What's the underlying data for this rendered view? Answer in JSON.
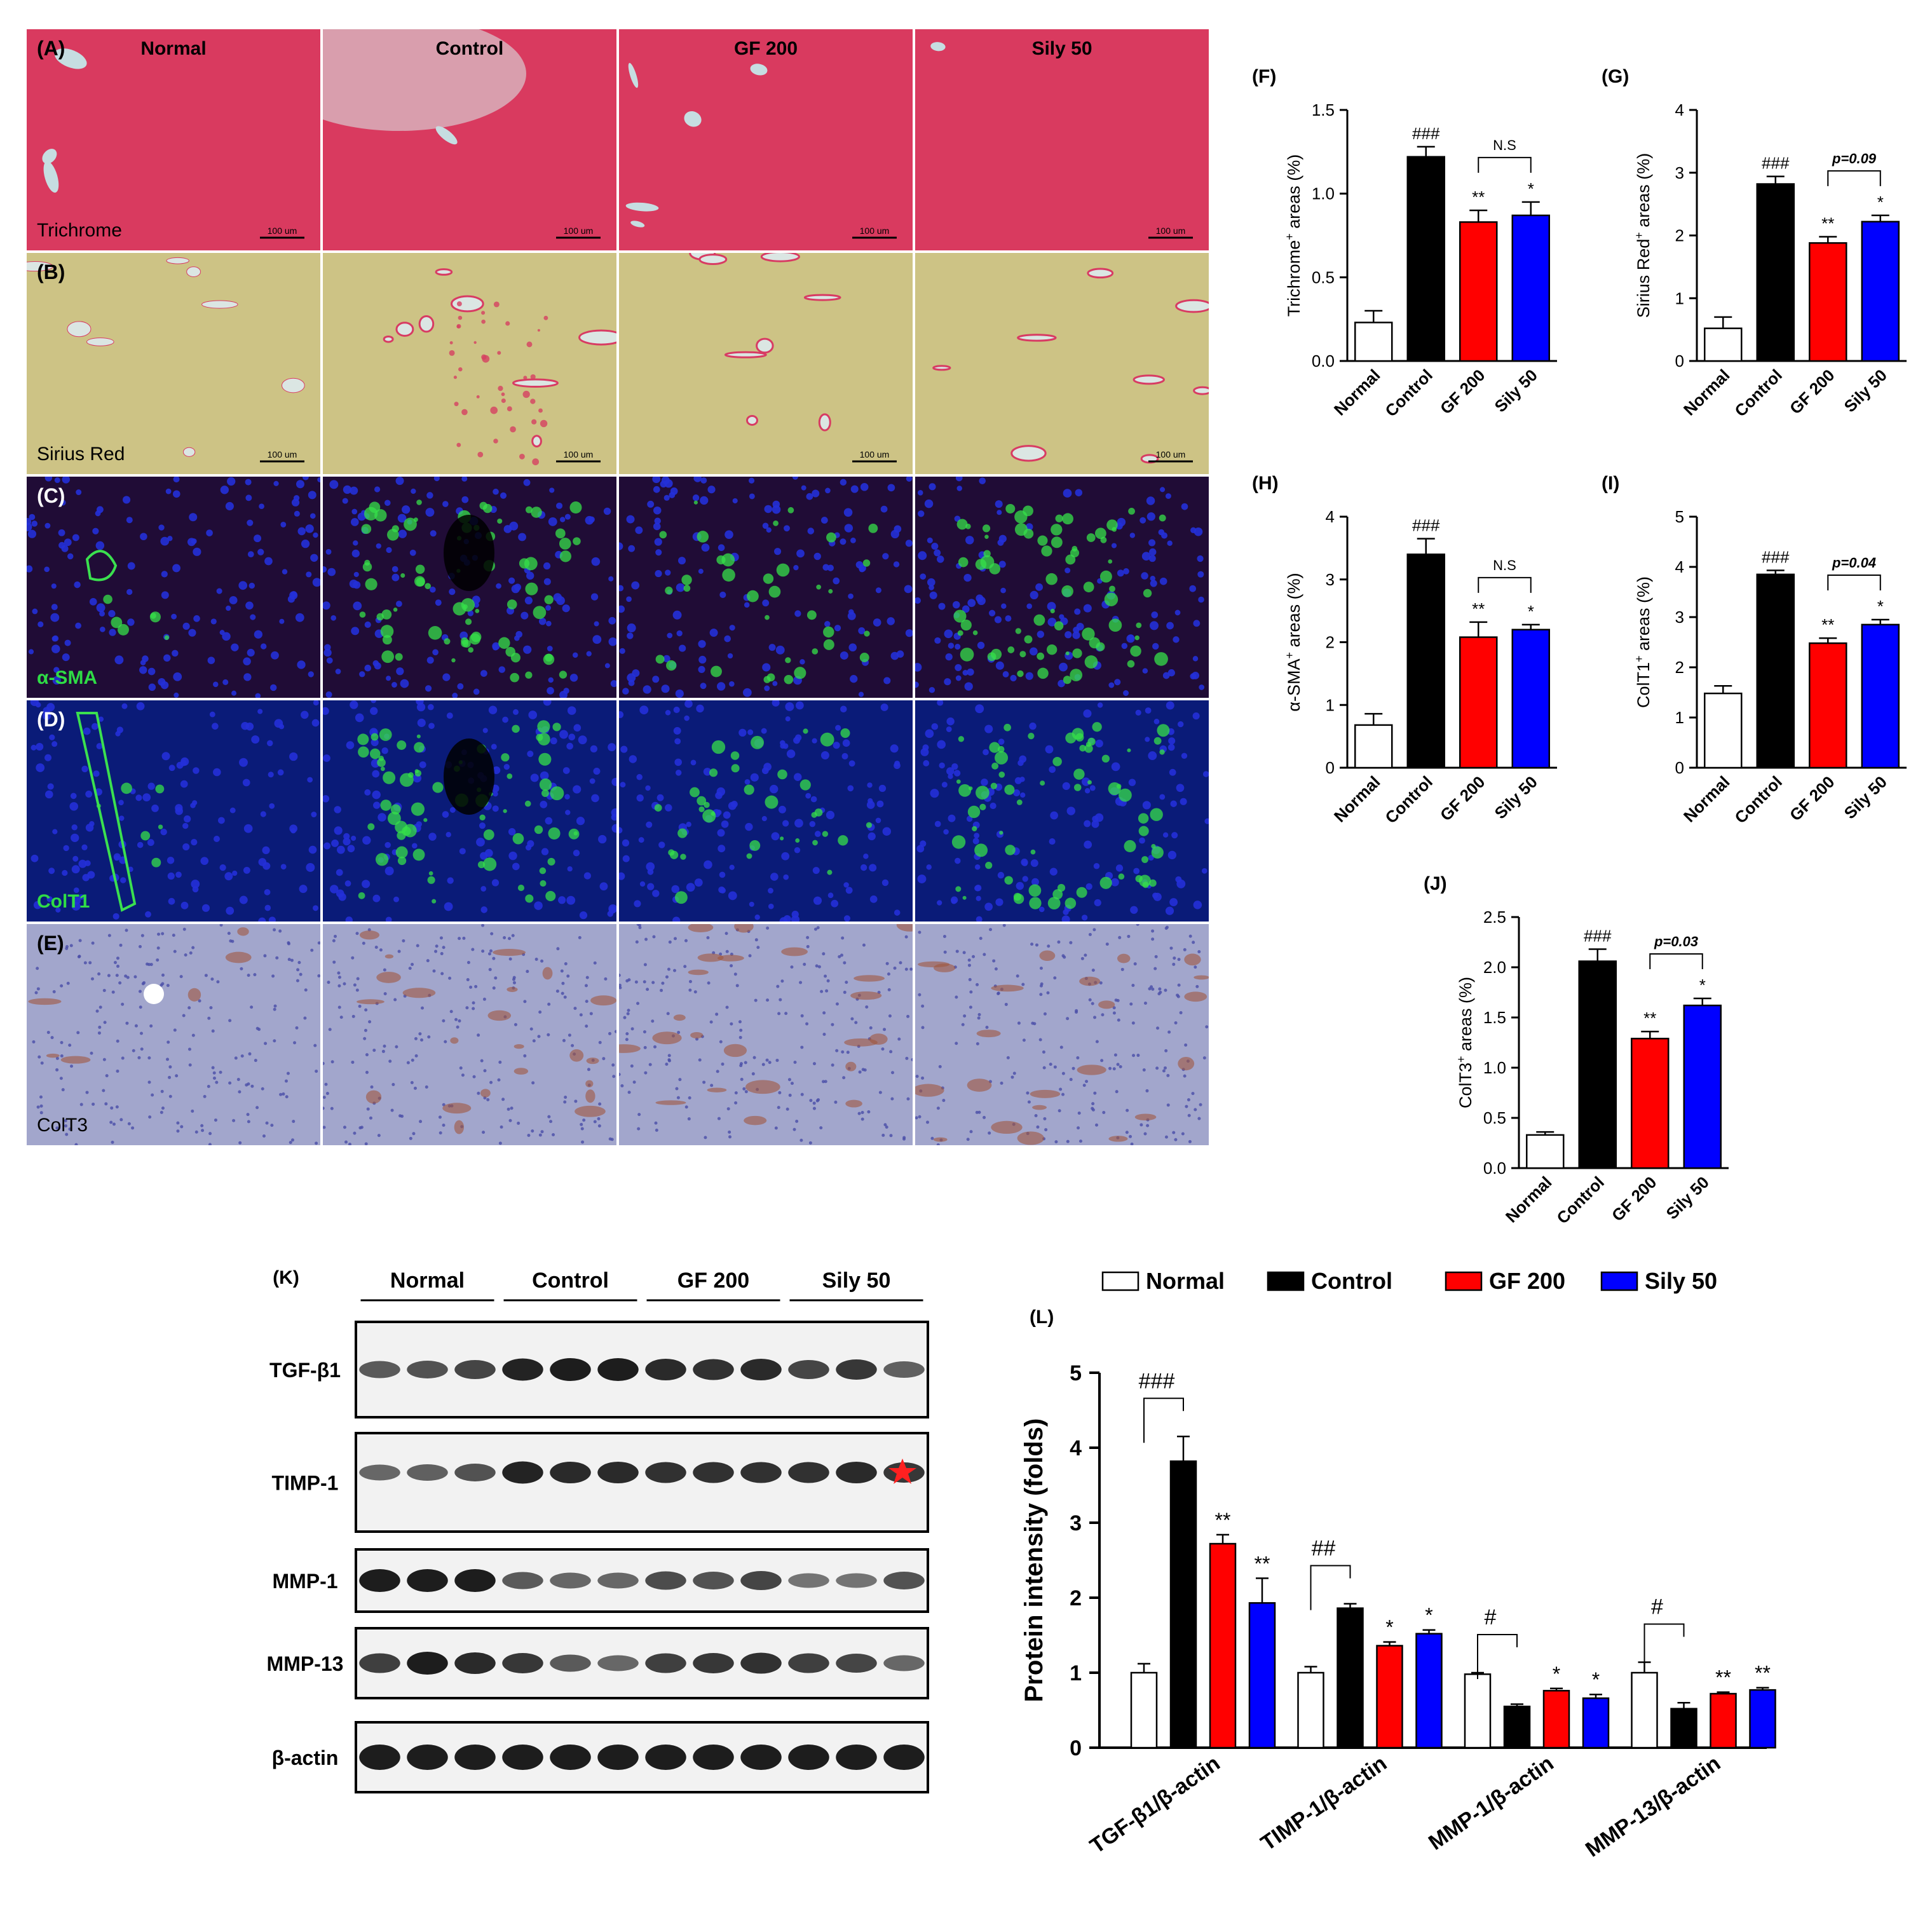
{
  "histology": {
    "columns": [
      "Normal",
      "Control",
      "GF 200",
      "Sily 50"
    ],
    "rows": [
      {
        "panel": "(A)",
        "stain": "Trichrome",
        "scale_bar": "100 um",
        "kind": "trichrome"
      },
      {
        "panel": "(B)",
        "stain": "Sirius Red",
        "scale_bar": "100 um",
        "kind": "sirius"
      },
      {
        "panel": "(C)",
        "stain": "α-SMA",
        "scale_bar": "",
        "kind": "fluo"
      },
      {
        "panel": "(D)",
        "stain": "ColT1",
        "scale_bar": "",
        "kind": "fluo2"
      },
      {
        "panel": "(E)",
        "stain": "ColT3",
        "scale_bar": "",
        "kind": "ihc"
      }
    ]
  },
  "colors": {
    "Normal": "#ffffff",
    "Control": "#000000",
    "GF 200": "#ff0000",
    "Sily 50": "#0000ff"
  },
  "chart_data": [
    {
      "panel": "(F)",
      "type": "bar",
      "categories": [
        "Normal",
        "Control",
        "GF 200",
        "Sily 50"
      ],
      "values": [
        0.23,
        1.22,
        0.83,
        0.87
      ],
      "errors": [
        0.07,
        0.06,
        0.07,
        0.08
      ],
      "ylabel_main": "Trichrome",
      "ylabel_sup": "+",
      "ylabel_rest": " areas (%)",
      "ylim": [
        0,
        1.5
      ],
      "yticks": [
        "0.0",
        "0.5",
        "1.0",
        "1.5"
      ],
      "sig": [
        "",
        "###",
        "**",
        "*"
      ],
      "bracket": "N.S",
      "bracket_italic": false
    },
    {
      "panel": "(G)",
      "type": "bar",
      "categories": [
        "Normal",
        "Control",
        "GF 200",
        "Sily 50"
      ],
      "values": [
        0.52,
        2.82,
        1.88,
        2.22
      ],
      "errors": [
        0.18,
        0.12,
        0.1,
        0.1
      ],
      "ylabel_main": "Sirius Red",
      "ylabel_sup": "+",
      "ylabel_rest": " areas (%)",
      "ylim": [
        0,
        4
      ],
      "yticks": [
        "0",
        "1",
        "2",
        "3",
        "4"
      ],
      "sig": [
        "",
        "###",
        "**",
        "*"
      ],
      "bracket": "p=0.09",
      "bracket_italic": true
    },
    {
      "panel": "(H)",
      "type": "bar",
      "categories": [
        "Normal",
        "Control",
        "GF 200",
        "Sily 50"
      ],
      "values": [
        0.68,
        3.4,
        2.08,
        2.2
      ],
      "errors": [
        0.18,
        0.25,
        0.24,
        0.08
      ],
      "ylabel_main": "α-SMA",
      "ylabel_sup": "+",
      "ylabel_rest": " areas (%)",
      "ylim": [
        0,
        4
      ],
      "yticks": [
        "0",
        "1",
        "2",
        "3",
        "4"
      ],
      "sig": [
        "",
        "###",
        "**",
        "*"
      ],
      "bracket": "N.S",
      "bracket_italic": false
    },
    {
      "panel": "(I)",
      "type": "bar",
      "categories": [
        "Normal",
        "Control",
        "GF 200",
        "Sily 50"
      ],
      "values": [
        1.48,
        3.85,
        2.48,
        2.85
      ],
      "errors": [
        0.15,
        0.08,
        0.1,
        0.1
      ],
      "ylabel_main": "ColT1",
      "ylabel_sup": "+",
      "ylabel_rest": " areas (%)",
      "ylim": [
        0,
        5
      ],
      "yticks": [
        "0",
        "1",
        "2",
        "3",
        "4",
        "5"
      ],
      "sig": [
        "",
        "###",
        "**",
        "*"
      ],
      "bracket": "p=0.04",
      "bracket_italic": true
    },
    {
      "panel": "(J)",
      "type": "bar",
      "categories": [
        "Normal",
        "Control",
        "GF 200",
        "Sily 50"
      ],
      "values": [
        0.33,
        2.06,
        1.29,
        1.62
      ],
      "errors": [
        0.03,
        0.12,
        0.07,
        0.07
      ],
      "ylabel_main": "ColT3",
      "ylabel_sup": "+",
      "ylabel_rest": " areas (%)",
      "ylim": [
        0,
        2.5
      ],
      "yticks": [
        "0.0",
        "0.5",
        "1.0",
        "1.5",
        "2.0",
        "2.5"
      ],
      "sig": [
        "",
        "###",
        "**",
        "*"
      ],
      "bracket": "p=0.03",
      "bracket_italic": true
    },
    {
      "panel": "(L)",
      "type": "bar",
      "categories": [
        "TGF-β1/β-actin",
        "TIMP-1/β-actin",
        "MMP-1/β-actin",
        "MMP-13/β-actin"
      ],
      "series_order": [
        "Normal",
        "Control",
        "GF 200",
        "Sily 50"
      ],
      "values": [
        [
          1.0,
          3.82,
          2.72,
          1.93
        ],
        [
          1.0,
          1.86,
          1.36,
          1.52
        ],
        [
          0.98,
          0.55,
          0.76,
          0.66
        ],
        [
          1.0,
          0.52,
          0.72,
          0.77
        ]
      ],
      "errors": [
        [
          0.12,
          0.33,
          0.12,
          0.33
        ],
        [
          0.08,
          0.06,
          0.05,
          0.05
        ],
        [
          0.02,
          0.03,
          0.03,
          0.05
        ],
        [
          0.14,
          0.08,
          0.02,
          0.03
        ]
      ],
      "sig": [
        [
          "",
          "",
          "**",
          "**"
        ],
        [
          "",
          "",
          "*",
          "*"
        ],
        [
          "",
          "",
          "*",
          "*"
        ],
        [
          "",
          "",
          "**",
          "**"
        ]
      ],
      "group_sig": [
        "###",
        "##",
        "#",
        "#"
      ],
      "ylabel": "Protein intensity (folds)",
      "ylim": [
        0,
        5
      ],
      "yticks": [
        "0",
        "1",
        "2",
        "3",
        "4",
        "5"
      ],
      "legend": [
        "Normal",
        "Control",
        "GF 200",
        "Sily 50"
      ],
      "legend_position": "top"
    }
  ],
  "western": {
    "panel": "(K)",
    "groups": [
      "Normal",
      "Control",
      "GF 200",
      "Sily 50"
    ],
    "blots": [
      {
        "name": "TGF-β1",
        "intensities": [
          0.55,
          0.6,
          0.7,
          0.95,
          1.0,
          1.0,
          0.9,
          0.85,
          0.9,
          0.7,
          0.8,
          0.5
        ]
      },
      {
        "name": "TIMP-1",
        "intensities": [
          0.45,
          0.5,
          0.6,
          0.95,
          0.9,
          0.9,
          0.85,
          0.85,
          0.85,
          0.85,
          0.9,
          0.8
        ],
        "star": true
      },
      {
        "name": "MMP-1",
        "intensities": [
          1.0,
          1.0,
          1.0,
          0.55,
          0.45,
          0.45,
          0.65,
          0.6,
          0.7,
          0.35,
          0.35,
          0.6
        ]
      },
      {
        "name": "MMP-13",
        "intensities": [
          0.75,
          1.0,
          0.9,
          0.8,
          0.55,
          0.45,
          0.75,
          0.8,
          0.85,
          0.75,
          0.7,
          0.45
        ]
      },
      {
        "name": "β-actin",
        "intensities": [
          1,
          1,
          1,
          1,
          1,
          1,
          1,
          1,
          1,
          1,
          1,
          1
        ]
      }
    ]
  }
}
